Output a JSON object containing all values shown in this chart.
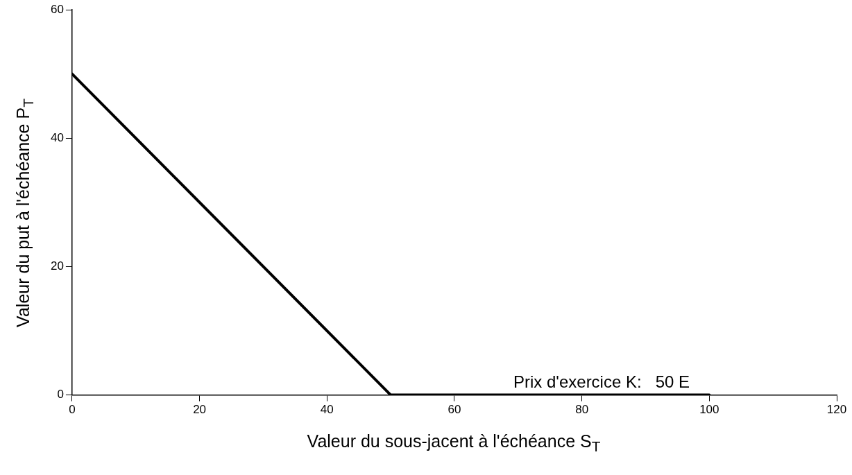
{
  "chart_data": {
    "type": "line",
    "xlabel": "Valeur du sous-jacent à l'échéance S$_{T}$",
    "ylabel": "Valeur du put à l'échéance P$_{T}$",
    "annotations": [
      "Prix d'exercice K:   50 E"
    ],
    "series": [
      {
        "color": "#000000",
        "x": [
          0,
          50,
          100
        ],
        "values": [
          50,
          0,
          0
        ]
      }
    ],
    "xlim": [
      0,
      120
    ],
    "xticks": [
      0,
      20,
      40,
      60,
      80,
      100,
      120
    ],
    "ylim": [
      0,
      60
    ],
    "yticks": [
      0,
      20,
      40,
      60
    ],
    "grid": false,
    "legend": false,
    "marker": "none",
    "line_style": "solid"
  }
}
